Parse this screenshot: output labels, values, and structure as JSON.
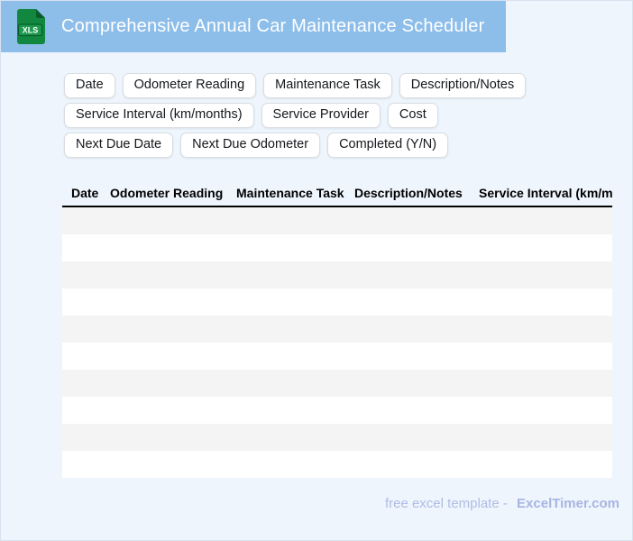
{
  "header": {
    "title": "Comprehensive Annual Car Maintenance Scheduler",
    "icon_name": "xls-file-icon",
    "icon_label": "XLS"
  },
  "chips": [
    "Date",
    "Odometer Reading",
    "Maintenance Task",
    "Description/Notes",
    "Service Interval (km/months)",
    "Service Provider",
    "Cost",
    "Next Due Date",
    "Next Due Odometer",
    "Completed (Y/N)"
  ],
  "table": {
    "columns": [
      "Date",
      "Odometer Reading",
      "Maintenance Task",
      "Description/Notes",
      "Service Interval (km/months)"
    ],
    "row_count": 10,
    "rows_empty": true
  },
  "footer": {
    "text": "free excel template -",
    "brand": "ExcelTimer.com"
  },
  "colors": {
    "header_bg": "#8dbeea",
    "page_bg": "#eef5fd",
    "row_stripe": "#f4f4f5",
    "header_rule": "#000000",
    "icon_green_dark": "#0c6b33",
    "icon_green": "#11873f",
    "footer_text": "#b0bce4"
  }
}
